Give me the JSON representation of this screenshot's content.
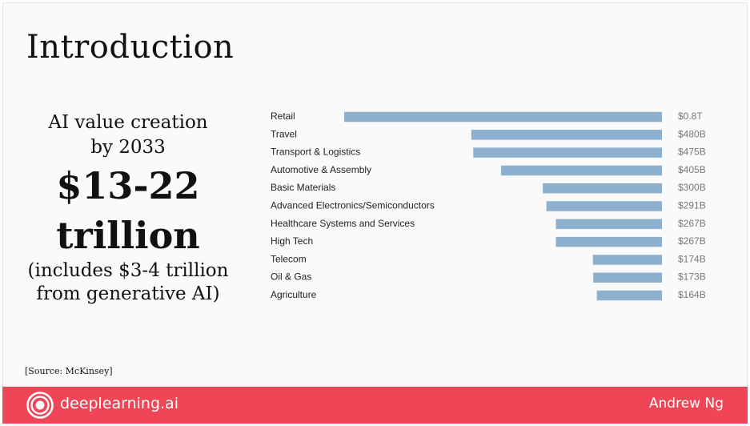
{
  "slide": {
    "title": "Introduction",
    "subtitle_line1": "AI value creation",
    "subtitle_line2": "by 2033",
    "big_line1": "$13-22",
    "big_line2": "trillion",
    "note_line1": "(includes $3-4 trillion",
    "note_line2": "from generative AI)",
    "source": "[Source:  McKinsey]"
  },
  "footer": {
    "brand": "deeplearning.ai",
    "author": "Andrew Ng",
    "logo_icon": "deeplearning-logo-icon",
    "bar_color": "#ef4556"
  },
  "chart_data": {
    "type": "bar",
    "orientation": "horizontal",
    "categories": [
      "Retail",
      "Travel",
      "Transport & Logistics",
      "Automotive & Assembly",
      "Basic Materials",
      "Advanced Electronics/Semiconductors",
      "Healthcare Systems and Services",
      "High Tech",
      "Telecom",
      "Oil & Gas",
      "Agriculture"
    ],
    "values": [
      800,
      480,
      475,
      405,
      300,
      291,
      267,
      267,
      174,
      173,
      164
    ],
    "value_labels": [
      "$0.8T",
      "$480B",
      "$475B",
      "$405B",
      "$300B",
      "$291B",
      "$267B",
      "$267B",
      "$174B",
      "$173B",
      "$164B"
    ],
    "bar_color": "#8cb0ce",
    "grid": false,
    "legend": "none"
  }
}
